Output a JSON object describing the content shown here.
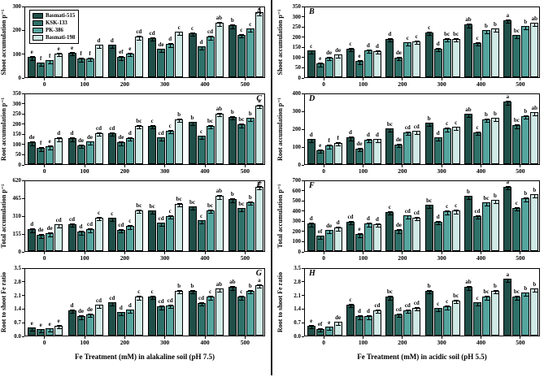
{
  "figure": {
    "series_names": [
      "Basmati-515",
      "KSK-133",
      "PK-386",
      "Basmati-198"
    ],
    "series_colors": [
      "#1f4f48",
      "#2e7169",
      "#55a59f",
      "#cfe9e5"
    ],
    "categories": [
      "0",
      "100",
      "200",
      "300",
      "400",
      "500"
    ],
    "xlabel_left": "Fe Treatment (mM) in alakaline soil (pH 7.5)",
    "xlabel_right": "Fe Treatment (mM) in acidic soil (pH 5.5)",
    "error_color": "#000000"
  },
  "chart_data": [
    {
      "type": "bar",
      "id": "A",
      "label_pos": "right",
      "show_legend": true,
      "ylabel": "Shoot accumulation p⁻¹",
      "ylim": [
        0,
        300
      ],
      "yticks": [
        "0",
        "100",
        "200",
        "300"
      ],
      "categories": [
        "0",
        "100",
        "200",
        "300",
        "400",
        "500"
      ],
      "series": [
        {
          "name": "Basmati-515",
          "values": [
            85,
            103,
            135,
            165,
            185,
            218
          ],
          "letters": [
            "e",
            "e",
            "d",
            "cd",
            "c",
            "b"
          ]
        },
        {
          "name": "KSK-133",
          "values": [
            60,
            78,
            85,
            118,
            128,
            178
          ],
          "letters": [
            "f",
            "f",
            "ef",
            "de",
            "d",
            "c"
          ]
        },
        {
          "name": "PK-386",
          "values": [
            70,
            80,
            100,
            140,
            170,
            203
          ],
          "letters": [
            "f",
            "f",
            "e",
            "d",
            "cd",
            "c"
          ]
        },
        {
          "name": "Basmati-198",
          "values": [
            100,
            135,
            170,
            190,
            228,
            272
          ],
          "letters": [
            "e",
            "d",
            "cd",
            "c",
            "ab",
            "a"
          ]
        }
      ]
    },
    {
      "type": "bar",
      "id": "B",
      "label_pos": "left",
      "show_legend": false,
      "ylabel": "Shoot accumulation p⁻¹",
      "ylim": [
        0,
        350
      ],
      "yticks": [
        "0",
        "50",
        "100",
        "150",
        "200",
        "250",
        "300",
        "350"
      ],
      "categories": [
        "0",
        "100",
        "200",
        "300",
        "400",
        "500"
      ],
      "series": [
        {
          "name": "Basmati-515",
          "values": [
            130,
            140,
            188,
            220,
            258,
            280
          ],
          "letters": [
            "c",
            "c",
            "d",
            "c",
            "ab",
            "a"
          ]
        },
        {
          "name": "KSK-133",
          "values": [
            68,
            80,
            97,
            140,
            168,
            205
          ],
          "letters": [
            "e",
            "e",
            "de",
            "d",
            "c",
            "bc"
          ]
        },
        {
          "name": "PK-386",
          "values": [
            97,
            132,
            170,
            188,
            230,
            250
          ],
          "letters": [
            "de",
            "d",
            "c",
            "bc",
            "b",
            "b"
          ]
        },
        {
          "name": "Basmati-198",
          "values": [
            110,
            128,
            177,
            188,
            237,
            265
          ],
          "letters": [
            "de",
            "d",
            "c",
            "bc",
            "b",
            "ab"
          ]
        }
      ]
    },
    {
      "type": "bar",
      "id": "C",
      "label_pos": "right",
      "show_legend": false,
      "ylabel": "Root accumulation p⁻¹",
      "ylim": [
        0,
        350
      ],
      "yticks": [
        "0",
        "50",
        "100",
        "150",
        "200",
        "250",
        "300",
        "350"
      ],
      "categories": [
        "0",
        "100",
        "200",
        "300",
        "400",
        "500"
      ],
      "series": [
        {
          "name": "Basmati-515",
          "values": [
            107,
            127,
            152,
            188,
            205,
            232
          ],
          "letters": [
            "de",
            "d",
            "cd",
            "c",
            "b",
            "b"
          ]
        },
        {
          "name": "KSK-133",
          "values": [
            80,
            93,
            107,
            130,
            138,
            195
          ],
          "letters": [
            "f",
            "de",
            "de",
            "cd",
            "c",
            "bc"
          ]
        },
        {
          "name": "PK-386",
          "values": [
            88,
            110,
            128,
            165,
            188,
            225
          ],
          "letters": [
            "e",
            "de",
            "d",
            "c",
            "bc",
            "b"
          ]
        },
        {
          "name": "Basmati-198",
          "values": [
            127,
            153,
            188,
            220,
            248,
            287
          ],
          "letters": [
            "d",
            "cd",
            "bc",
            "b",
            "ab",
            "a"
          ]
        }
      ]
    },
    {
      "type": "bar",
      "id": "D",
      "label_pos": "left",
      "show_legend": false,
      "ylabel": "Root accumulation p⁻¹",
      "ylim": [
        0,
        400
      ],
      "yticks": [
        "0",
        "100",
        "200",
        "300",
        "400"
      ],
      "categories": [
        "0",
        "100",
        "200",
        "300",
        "400",
        "500"
      ],
      "series": [
        {
          "name": "Basmati-515",
          "values": [
            140,
            150,
            198,
            230,
            280,
            350
          ],
          "letters": [
            "d",
            "d",
            "bc",
            "b",
            "ab",
            "a"
          ]
        },
        {
          "name": "KSK-133",
          "values": [
            78,
            88,
            110,
            148,
            178,
            218
          ],
          "letters": [
            "e",
            "de",
            "de",
            "d",
            "c",
            "bc"
          ]
        },
        {
          "name": "PK-386",
          "values": [
            105,
            138,
            178,
            200,
            252,
            270
          ],
          "letters": [
            "f",
            "d",
            "cd",
            "c",
            "b",
            "b"
          ]
        },
        {
          "name": "Basmati-198",
          "values": [
            120,
            140,
            185,
            208,
            258,
            290
          ],
          "letters": [
            "f",
            "d",
            "cd",
            "c",
            "b",
            "ab"
          ]
        }
      ]
    },
    {
      "type": "bar",
      "id": "E",
      "label_pos": "right",
      "show_legend": false,
      "ylabel": "Total accumulation p⁻¹",
      "ylim": [
        0,
        620
      ],
      "yticks": [
        "0",
        "155",
        "310",
        "465",
        "620"
      ],
      "categories": [
        "0",
        "100",
        "200",
        "300",
        "400",
        "500"
      ],
      "series": [
        {
          "name": "Basmati-515",
          "values": [
            190,
            235,
            287,
            350,
            385,
            450
          ],
          "letters": [
            "d",
            "cd",
            "c",
            "bc",
            "bc",
            "b"
          ]
        },
        {
          "name": "KSK-133",
          "values": [
            140,
            170,
            185,
            245,
            265,
            370
          ],
          "letters": [
            "de",
            "d",
            "cd",
            "cd",
            "c",
            "bc"
          ]
        },
        {
          "name": "PK-386",
          "values": [
            155,
            190,
            218,
            305,
            355,
            425
          ],
          "letters": [
            "de",
            "cd",
            "c",
            "c",
            "bc",
            "b"
          ]
        },
        {
          "name": "Basmati-198",
          "values": [
            230,
            290,
            355,
            410,
            480,
            560
          ],
          "letters": [
            "cd",
            "c",
            "bc",
            "bc",
            "ab",
            "a"
          ]
        }
      ]
    },
    {
      "type": "bar",
      "id": "F",
      "label_pos": "left",
      "show_legend": false,
      "ylabel": "Total accumulation p⁻¹",
      "ylim": [
        0,
        700
      ],
      "yticks": [
        "0",
        "100",
        "200",
        "300",
        "400",
        "500",
        "600",
        "700"
      ],
      "categories": [
        "0",
        "100",
        "200",
        "300",
        "400",
        "500"
      ],
      "series": [
        {
          "name": "Basmati-515",
          "values": [
            270,
            290,
            385,
            450,
            538,
            630
          ],
          "letters": [
            "d",
            "cd",
            "c",
            "bc",
            "b",
            "a"
          ]
        },
        {
          "name": "KSK-133",
          "values": [
            150,
            168,
            207,
            290,
            345,
            425
          ],
          "letters": [
            "ef",
            "e",
            "de",
            "d",
            "cd",
            "c"
          ]
        },
        {
          "name": "PK-386",
          "values": [
            205,
            270,
            348,
            390,
            475,
            518
          ],
          "letters": [
            "de",
            "d",
            "cd",
            "c",
            "bc",
            "b"
          ]
        },
        {
          "name": "Basmati-198",
          "values": [
            230,
            265,
            328,
            398,
            500,
            555
          ],
          "letters": [
            "d",
            "d",
            "cd",
            "c",
            "b",
            "b"
          ]
        }
      ]
    },
    {
      "type": "bar",
      "id": "G",
      "label_pos": "right",
      "show_legend": false,
      "ylabel": "Root to shoot Fe ratio",
      "ylim": [
        0,
        3.5
      ],
      "yticks": [
        "0.0",
        "0.7",
        "1.4",
        "2.1",
        "2.8",
        "3.5"
      ],
      "categories": [
        "0",
        "100",
        "200",
        "300",
        "400",
        "500"
      ],
      "xlabel": "Fe Treatment (mM) in alakaline soil (pH 7.5)",
      "series": [
        {
          "name": "Basmati-515",
          "values": [
            0.4,
            1.3,
            1.7,
            2.02,
            2.3,
            2.5
          ],
          "letters": [
            "e",
            "d",
            "cd",
            "c",
            "b",
            "ab"
          ]
        },
        {
          "name": "KSK-133",
          "values": [
            0.32,
            1.0,
            1.2,
            1.5,
            1.68,
            2.0
          ],
          "letters": [
            "e",
            "de",
            "d",
            "cd",
            "cd",
            "c"
          ]
        },
        {
          "name": "PK-386",
          "values": [
            0.36,
            1.1,
            1.32,
            1.55,
            2.0,
            2.3
          ],
          "letters": [
            "e",
            "de",
            "d",
            "cd",
            "c",
            "b"
          ]
        },
        {
          "name": "Basmati-198",
          "values": [
            0.52,
            1.58,
            2.0,
            2.3,
            2.4,
            2.6
          ],
          "letters": [
            "e",
            "cd",
            "c",
            "b",
            "ab",
            "a"
          ]
        }
      ]
    },
    {
      "type": "bar",
      "id": "H",
      "label_pos": "left",
      "show_legend": false,
      "ylabel": "Root to shoot Fe ratio",
      "ylim": [
        0,
        3.5
      ],
      "yticks": [
        "0.0",
        "0.7",
        "1.4",
        "2.1",
        "2.8",
        "3.5"
      ],
      "categories": [
        "0",
        "100",
        "200",
        "300",
        "400",
        "500"
      ],
      "xlabel": "Fe Treatment (mM) in acidic soil (pH 5.5)",
      "series": [
        {
          "name": "Basmati-515",
          "values": [
            0.52,
            1.6,
            2.0,
            2.3,
            2.5,
            2.9
          ],
          "letters": [
            "e",
            "c",
            "bc",
            "b",
            "ab",
            "a"
          ]
        },
        {
          "name": "KSK-133",
          "values": [
            0.35,
            1.0,
            1.1,
            1.4,
            1.7,
            2.0
          ],
          "letters": [
            "ef",
            "d",
            "cd",
            "c",
            "c",
            "bc"
          ]
        },
        {
          "name": "PK-386",
          "values": [
            0.45,
            1.0,
            1.3,
            1.5,
            2.0,
            2.2
          ],
          "letters": [
            "e",
            "d",
            "cd",
            "c",
            "bc",
            "b"
          ]
        },
        {
          "name": "Basmati-198",
          "values": [
            0.7,
            1.3,
            1.42,
            1.8,
            2.3,
            2.4
          ],
          "letters": [
            "de",
            "cd",
            "cd",
            "bc",
            "b",
            "b"
          ]
        }
      ]
    }
  ]
}
